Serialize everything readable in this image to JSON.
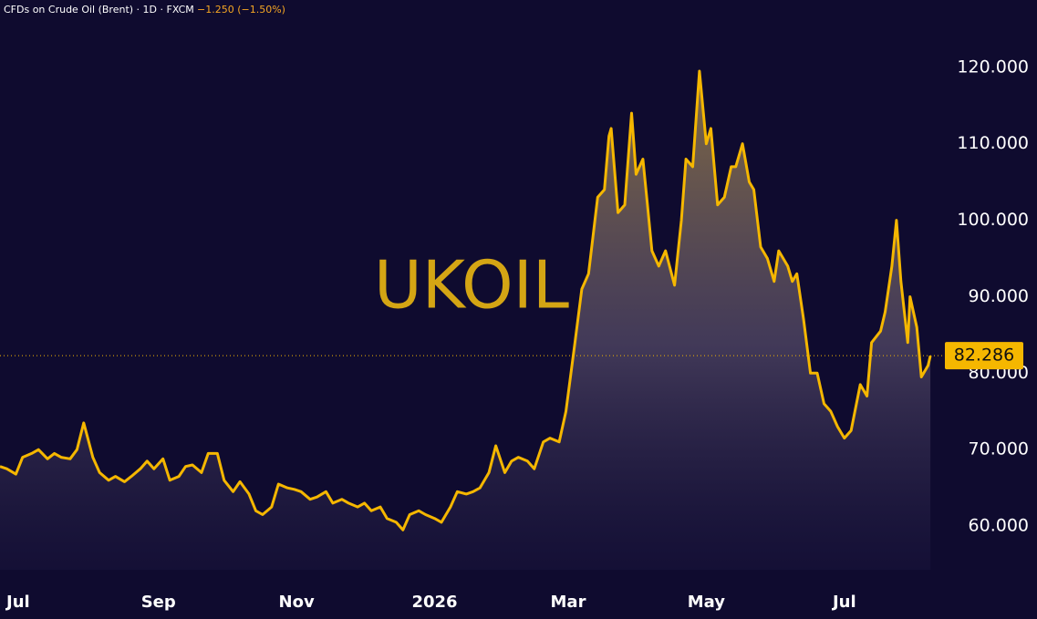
{
  "chart_data": {
    "type": "line",
    "title": "CFDs on Crude Oil (Brent) · 1D · FXCM",
    "change": "−1.250 (−1.50%)",
    "watermark": "UKOIL",
    "color": "#f5b700",
    "last_price": 82.286,
    "x": [
      -8,
      -5,
      -1,
      2,
      6,
      9,
      13,
      16,
      19,
      23,
      26,
      29,
      33,
      36,
      40,
      43,
      47,
      50,
      54,
      57,
      60,
      64,
      67,
      71,
      74,
      77,
      81,
      84,
      88,
      91,
      95,
      98,
      102,
      105,
      108,
      112,
      115,
      119,
      122,
      125,
      129,
      132,
      136,
      139,
      143,
      146,
      150,
      153,
      156,
      160,
      163,
      167,
      170,
      173,
      177,
      180,
      184,
      187,
      191,
      194,
      198,
      201,
      204,
      208,
      211,
      215,
      218,
      221,
      225,
      228,
      232,
      235,
      239,
      242,
      246,
      249,
      252,
      256,
      259,
      261,
      262,
      265,
      268,
      271,
      273,
      276,
      278,
      280,
      283,
      286,
      290,
      293,
      295,
      298,
      301,
      304,
      306,
      309,
      312,
      315,
      317,
      320,
      323,
      325,
      328,
      331,
      334,
      336,
      340,
      342,
      344,
      347,
      350,
      353,
      356,
      359,
      362,
      365,
      368,
      372,
      375,
      377,
      381,
      383,
      386,
      388,
      390,
      393,
      394,
      397,
      399,
      402,
      403
    ],
    "values": [
      67.8,
      67.5,
      66.8,
      69,
      69.5,
      70,
      68.8,
      69.5,
      69,
      68.8,
      70,
      73.5,
      69,
      67,
      66,
      66.5,
      65.8,
      66.5,
      67.5,
      68.5,
      67.5,
      68.8,
      66,
      66.5,
      67.8,
      68,
      67,
      69.5,
      69.5,
      66,
      64.5,
      65.8,
      64.2,
      62,
      61.5,
      62.5,
      65.5,
      65,
      64.8,
      64.5,
      63.5,
      63.8,
      64.5,
      63,
      63.5,
      63,
      62.5,
      63,
      62,
      62.5,
      61,
      60.5,
      59.5,
      61.5,
      62,
      61.5,
      61,
      60.5,
      62.5,
      64.5,
      64.2,
      64.5,
      65,
      67,
      70.5,
      67,
      68.5,
      69,
      68.5,
      67.5,
      71,
      71.5,
      71,
      75,
      84,
      91,
      93,
      103,
      104,
      111,
      112,
      101,
      102,
      114,
      106,
      108,
      102,
      96,
      94,
      96,
      91.5,
      100,
      108,
      107,
      119.5,
      110,
      112,
      102,
      103,
      107,
      107,
      110,
      105,
      104,
      96.5,
      95,
      92,
      96,
      94,
      92,
      93,
      87,
      80,
      80,
      76,
      75,
      73,
      71.5,
      72.5,
      78.5,
      77,
      84,
      85.5,
      88,
      94,
      100,
      92,
      84,
      90,
      86,
      79.5,
      81,
      82.286
    ],
    "xlim": [
      -8,
      409
    ],
    "ylim": [
      52.5,
      128.8
    ],
    "xticks": [
      {
        "value": 0,
        "label": "Jul"
      },
      {
        "value": 62,
        "label": "Sep"
      },
      {
        "value": 123,
        "label": "Nov"
      },
      {
        "value": 184,
        "label": "2026"
      },
      {
        "value": 243,
        "label": "Mar"
      },
      {
        "value": 304,
        "label": "May"
      },
      {
        "value": 365,
        "label": "Jul"
      }
    ],
    "yticks": [
      {
        "value": 60,
        "label": "60.000"
      },
      {
        "value": 70,
        "label": "70.000"
      },
      {
        "value": 80,
        "label": "80.000"
      },
      {
        "value": 90,
        "label": "90.000"
      },
      {
        "value": 100,
        "label": "100.000"
      },
      {
        "value": 110,
        "label": "110.000"
      },
      {
        "value": 120,
        "label": "120.000"
      }
    ]
  }
}
